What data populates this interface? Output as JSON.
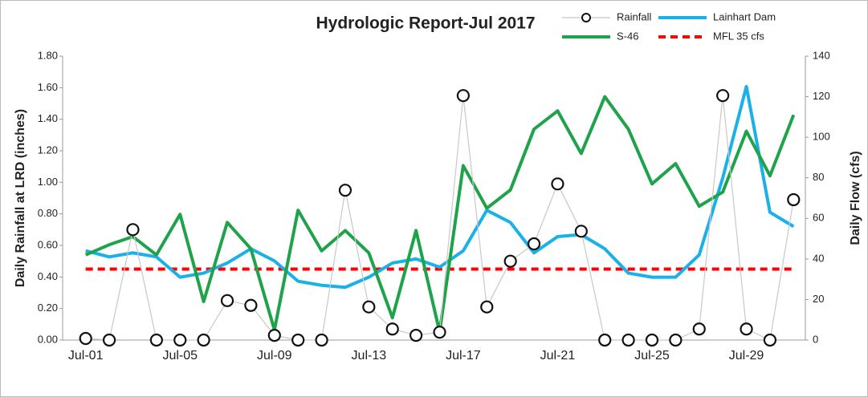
{
  "chart_data": {
    "type": "line",
    "title": "Hydrologic Report-Jul 2017",
    "y_label": "Daily Rainfall at LRD (inches)",
    "y2_label": "Daily Flow (cfs)",
    "categories": [
      "Jul-01",
      null,
      null,
      null,
      "Jul-05",
      null,
      null,
      null,
      "Jul-09",
      null,
      null,
      null,
      "Jul-13",
      null,
      null,
      null,
      "Jul-17",
      null,
      null,
      null,
      "Jul-21",
      null,
      null,
      null,
      "Jul-25",
      null,
      null,
      null,
      "Jul-29",
      null,
      null
    ],
    "series": [
      {
        "name": "Rainfall",
        "color": "#c8c8c8",
        "marker": "circle",
        "axis": "y",
        "values": [
          0.01,
          0.0,
          0.7,
          0.0,
          0.0,
          0.0,
          0.25,
          0.22,
          0.03,
          0.0,
          0.0,
          0.95,
          0.21,
          0.07,
          0.03,
          0.05,
          1.55,
          0.21,
          0.5,
          0.61,
          0.99,
          0.69,
          0.0,
          0.0,
          0.0,
          0.0,
          0.07,
          1.55,
          0.07,
          0.0,
          0.89
        ]
      },
      {
        "name": "Lainhart Dam",
        "color": "#1ab0e8",
        "axis": "y2",
        "values": [
          44,
          41,
          43,
          41,
          31,
          33,
          38,
          45,
          39,
          29,
          27,
          26,
          31,
          38,
          40,
          36,
          44,
          64,
          58,
          43,
          51,
          52,
          45,
          33,
          31,
          31,
          42,
          80,
          125,
          63,
          56
        ]
      },
      {
        "name": "S-46",
        "color": "#1fa34a",
        "axis": "y2",
        "values": [
          42,
          47,
          51,
          42,
          62,
          19,
          58,
          45,
          5,
          64,
          44,
          54,
          43,
          11,
          54,
          4,
          86,
          65,
          74,
          104,
          113,
          92,
          120,
          104,
          77,
          87,
          66,
          73,
          103,
          81,
          111
        ]
      },
      {
        "name": "MFL 35 cfs",
        "color": "#ff0000",
        "dashed": true,
        "axis": "y2",
        "value": 35
      }
    ],
    "ylim": [
      0,
      1.8
    ],
    "yticks": [
      {
        "value": 0,
        "label": "0.00"
      },
      {
        "value": 0.2,
        "label": "0.20"
      },
      {
        "value": 0.4,
        "label": "0.40"
      },
      {
        "value": 0.6,
        "label": "0.60"
      },
      {
        "value": 0.8,
        "label": "0.80"
      },
      {
        "value": 1.0,
        "label": "1.00"
      },
      {
        "value": 1.2,
        "label": "1.20"
      },
      {
        "value": 1.4,
        "label": "1.40"
      },
      {
        "value": 1.6,
        "label": "1.60"
      },
      {
        "value": 1.8,
        "label": "1.80"
      }
    ],
    "y2lim": [
      0,
      140
    ],
    "y2ticks": [
      0,
      20,
      40,
      60,
      80,
      100,
      120,
      140
    ],
    "legend": "top-right"
  }
}
